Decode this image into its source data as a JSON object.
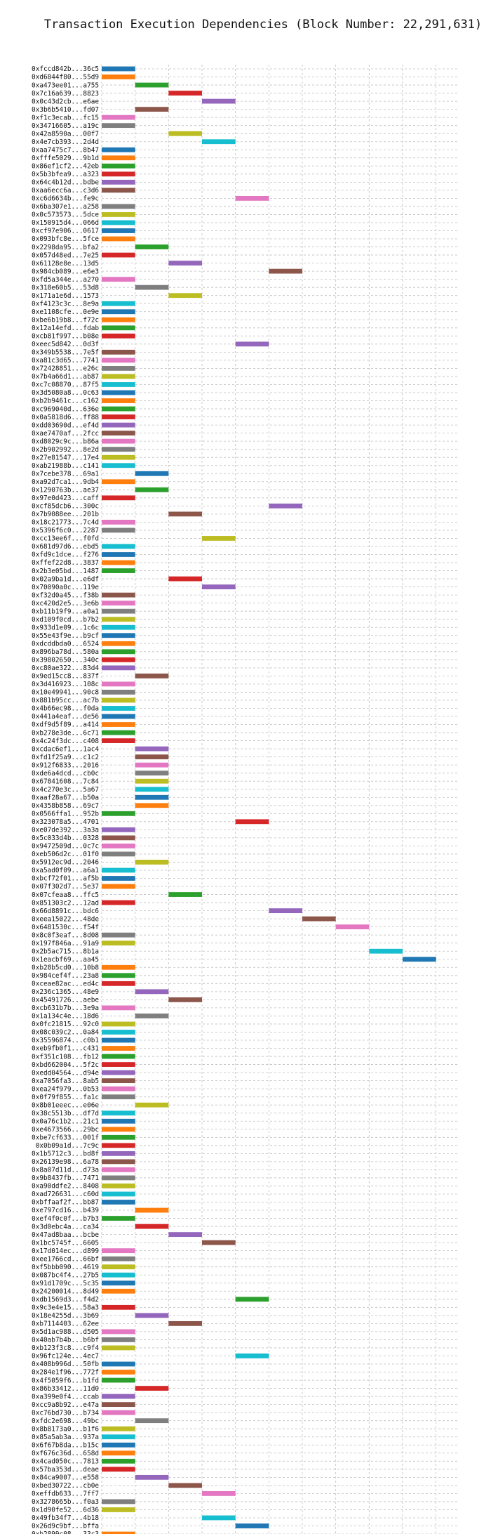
{
  "chart_data": {
    "type": "gantt",
    "title": "Transaction Execution Dependencies (Block Number: 22,291,631)",
    "xlabel": "",
    "ylabel": "",
    "xlim": [
      0,
      10.7
    ],
    "xticks": [
      0,
      2,
      4,
      6,
      8,
      10
    ],
    "grid": true,
    "palette": [
      "#1f77b4",
      "#ff7f0e",
      "#2ca02c",
      "#d62728",
      "#9467bd",
      "#8c564b",
      "#e377c2",
      "#7f7f7f",
      "#bcbd22",
      "#17becf"
    ],
    "bars": [
      {
        "tx": "0xfccd842b...36c5",
        "start": 0,
        "end": 1
      },
      {
        "tx": "0xd6844f80...55d9",
        "start": 0,
        "end": 1
      },
      {
        "tx": "0xa473ee01...a755",
        "start": 1,
        "end": 2
      },
      {
        "tx": "0x7c16a639...8823",
        "start": 2,
        "end": 3
      },
      {
        "tx": "0x0c43d2cb...e6ae",
        "start": 3,
        "end": 4
      },
      {
        "tx": "0x3b6b5410...fd07",
        "start": 1,
        "end": 2
      },
      {
        "tx": "0xf1c3ecab...fc15",
        "start": 0,
        "end": 1
      },
      {
        "tx": "0x34716605...a19c",
        "start": 0,
        "end": 1
      },
      {
        "tx": "0x42a8590a...00f7",
        "start": 2,
        "end": 3
      },
      {
        "tx": "0x4e7cb393...2d4d",
        "start": 3,
        "end": 4
      },
      {
        "tx": "0xaa7475c7...8b47",
        "start": 0,
        "end": 1
      },
      {
        "tx": "0xfffe5029...9b1d",
        "start": 0,
        "end": 1
      },
      {
        "tx": "0x86ef1cf2...42eb",
        "start": 0,
        "end": 1
      },
      {
        "tx": "0x5b3bfea9...a323",
        "start": 0,
        "end": 1
      },
      {
        "tx": "0x64c4b12d...bdbe",
        "start": 0,
        "end": 1
      },
      {
        "tx": "0xaa6ecc6a...c3d6",
        "start": 0,
        "end": 1
      },
      {
        "tx": "0xc6d6634b...fe9c",
        "start": 4,
        "end": 5
      },
      {
        "tx": "0x6ba307e1...a258",
        "start": 0,
        "end": 1
      },
      {
        "tx": "0x0c573573...5dce",
        "start": 0,
        "end": 1
      },
      {
        "tx": "0x150915d4...066d",
        "start": 0,
        "end": 1
      },
      {
        "tx": "0xcf97e906...0617",
        "start": 0,
        "end": 1
      },
      {
        "tx": "0x093bfc8e...5fce",
        "start": 0,
        "end": 1
      },
      {
        "tx": "0x2298da95...bfa2",
        "start": 1,
        "end": 2
      },
      {
        "tx": "0x057d48ed...7e25",
        "start": 0,
        "end": 1
      },
      {
        "tx": "0x61128e8e...13d5",
        "start": 2,
        "end": 3
      },
      {
        "tx": "0x984cb089...e6e3",
        "start": 5,
        "end": 6
      },
      {
        "tx": "0xfd5a344e...a270",
        "start": 0,
        "end": 1
      },
      {
        "tx": "0x318e60b5...53d8",
        "start": 1,
        "end": 2
      },
      {
        "tx": "0x171a1e6d...1573",
        "start": 2,
        "end": 3
      },
      {
        "tx": "0xf4123c3c...8e9a",
        "start": 0,
        "end": 1
      },
      {
        "tx": "0xe1108cfe...0e9e",
        "start": 0,
        "end": 1
      },
      {
        "tx": "0xbe6b19b8...f72c",
        "start": 0,
        "end": 1
      },
      {
        "tx": "0x12a14efd...fdab",
        "start": 0,
        "end": 1
      },
      {
        "tx": "0xcb81f997...b08e",
        "start": 0,
        "end": 1
      },
      {
        "tx": "0xeec5d842...0d3f",
        "start": 4,
        "end": 5
      },
      {
        "tx": "0x349b5538...7e5f",
        "start": 0,
        "end": 1
      },
      {
        "tx": "0xa81c3d65...7741",
        "start": 0,
        "end": 1
      },
      {
        "tx": "0x72428851...e26c",
        "start": 0,
        "end": 1
      },
      {
        "tx": "0x7b4a66d1...ab87",
        "start": 0,
        "end": 1
      },
      {
        "tx": "0xc7c08870...87f5",
        "start": 0,
        "end": 1
      },
      {
        "tx": "0x3d5080a8...0c63",
        "start": 0,
        "end": 1
      },
      {
        "tx": "0xb2b9461c...c162",
        "start": 0,
        "end": 1
      },
      {
        "tx": "0xc969040d...636e",
        "start": 0,
        "end": 1
      },
      {
        "tx": "0x0a5818d6...ff88",
        "start": 0,
        "end": 1
      },
      {
        "tx": "0xdd03690d...ef4d",
        "start": 0,
        "end": 1
      },
      {
        "tx": "0xae7470af...2fcc",
        "start": 0,
        "end": 1
      },
      {
        "tx": "0xd8029c9c...b86a",
        "start": 0,
        "end": 1
      },
      {
        "tx": "0x2b902992...8e2d",
        "start": 0,
        "end": 1
      },
      {
        "tx": "0x27e81547...17e4",
        "start": 0,
        "end": 1
      },
      {
        "tx": "0xab21988b...c141",
        "start": 0,
        "end": 1
      },
      {
        "tx": "0x7cebe378...69a1",
        "start": 1,
        "end": 2
      },
      {
        "tx": "0xa92d7ca1...9db4",
        "start": 0,
        "end": 1
      },
      {
        "tx": "0x1290763b...ae37",
        "start": 1,
        "end": 2
      },
      {
        "tx": "0x97e0d423...caff",
        "start": 0,
        "end": 1
      },
      {
        "tx": "0xcf85dcb6...300c",
        "start": 5,
        "end": 6
      },
      {
        "tx": "0x7b9088ee...201b",
        "start": 2,
        "end": 3
      },
      {
        "tx": "0x18c21773...7c4d",
        "start": 0,
        "end": 1
      },
      {
        "tx": "0x5396f6c0...2287",
        "start": 0,
        "end": 1
      },
      {
        "tx": "0xcc13ee6f...f0fd",
        "start": 3,
        "end": 4
      },
      {
        "tx": "0x681d97d6...ebd5",
        "start": 0,
        "end": 1
      },
      {
        "tx": "0xfd9c1dce...f276",
        "start": 0,
        "end": 1
      },
      {
        "tx": "0xffef22d8...3837",
        "start": 0,
        "end": 1
      },
      {
        "tx": "0x2b3e05bd...1487",
        "start": 0,
        "end": 1
      },
      {
        "tx": "0x02a9ba1d...e6df",
        "start": 2,
        "end": 3
      },
      {
        "tx": "0x70090a0c...119e",
        "start": 3,
        "end": 4
      },
      {
        "tx": "0xf32d0a45...f38b",
        "start": 0,
        "end": 1
      },
      {
        "tx": "0xc420d2e5...3e6b",
        "start": 0,
        "end": 1
      },
      {
        "tx": "0xb11b19f9...a0a1",
        "start": 0,
        "end": 1
      },
      {
        "tx": "0xd109f0cd...b7b2",
        "start": 0,
        "end": 1
      },
      {
        "tx": "0x933d1e09...1c6c",
        "start": 0,
        "end": 1
      },
      {
        "tx": "0x55e43f9e...b9cf",
        "start": 0,
        "end": 1
      },
      {
        "tx": "0xdcddbda0...6524",
        "start": 0,
        "end": 1
      },
      {
        "tx": "0x896ba78d...580a",
        "start": 0,
        "end": 1
      },
      {
        "tx": "0x39802650...340c",
        "start": 0,
        "end": 1
      },
      {
        "tx": "0xc80ae322...83d4",
        "start": 0,
        "end": 1
      },
      {
        "tx": "0x9ed15cc8...837f",
        "start": 1,
        "end": 2
      },
      {
        "tx": "0x3d416923...108c",
        "start": 0,
        "end": 1
      },
      {
        "tx": "0x10e49941...90c8",
        "start": 0,
        "end": 1
      },
      {
        "tx": "0x881b95cc...ac7b",
        "start": 0,
        "end": 1
      },
      {
        "tx": "0x4b66ec98...f0da",
        "start": 0,
        "end": 1
      },
      {
        "tx": "0x441a4eaf...de56",
        "start": 0,
        "end": 1
      },
      {
        "tx": "0xdf9d5f89...a414",
        "start": 0,
        "end": 1
      },
      {
        "tx": "0xb278e3de...6c71",
        "start": 0,
        "end": 1
      },
      {
        "tx": "0x4c24f3dc...c408",
        "start": 0,
        "end": 1
      },
      {
        "tx": "0xcdac6ef1...1ac4",
        "start": 1,
        "end": 2
      },
      {
        "tx": "0xfd1f25a9...c1c2",
        "start": 1,
        "end": 2
      },
      {
        "tx": "0x912f6833...2016",
        "start": 1,
        "end": 2
      },
      {
        "tx": "0xde6a4dcd...cb0c",
        "start": 1,
        "end": 2
      },
      {
        "tx": "0x67841608...7c84",
        "start": 1,
        "end": 2
      },
      {
        "tx": "0x4c270e3c...5a67",
        "start": 1,
        "end": 2
      },
      {
        "tx": "0xaaf28a67...b50a",
        "start": 1,
        "end": 2
      },
      {
        "tx": "0x4358b858...69c7",
        "start": 1,
        "end": 2
      },
      {
        "tx": "0x0566ffa1...952b",
        "start": 0,
        "end": 1
      },
      {
        "tx": "0x323078a5...4701",
        "start": 4,
        "end": 5
      },
      {
        "tx": "0xe07de392...3a3a",
        "start": 0,
        "end": 1
      },
      {
        "tx": "0x5c033d4b...0328",
        "start": 0,
        "end": 1
      },
      {
        "tx": "0x9472509d...0c7c",
        "start": 0,
        "end": 1
      },
      {
        "tx": "0xeb506d2c...01f0",
        "start": 0,
        "end": 1
      },
      {
        "tx": "0x5912ec9d...2046",
        "start": 1,
        "end": 2
      },
      {
        "tx": "0xa5ad0f09...a6a1",
        "start": 0,
        "end": 1
      },
      {
        "tx": "0xbcf72f01...af5b",
        "start": 0,
        "end": 1
      },
      {
        "tx": "0x07f302d7...5e37",
        "start": 0,
        "end": 1
      },
      {
        "tx": "0x07cfeaa8...ffc5",
        "start": 2,
        "end": 3
      },
      {
        "tx": "0x851303c2...12ad",
        "start": 0,
        "end": 1
      },
      {
        "tx": "0x66d8891c...bdc6",
        "start": 5,
        "end": 6
      },
      {
        "tx": "0xeea15022...48de",
        "start": 6,
        "end": 7
      },
      {
        "tx": "0x6481530c...f54f",
        "start": 7,
        "end": 8
      },
      {
        "tx": "0x8c0f3eaf...8d08",
        "start": 0,
        "end": 1
      },
      {
        "tx": "0x197f846a...91a9",
        "start": 0,
        "end": 1
      },
      {
        "tx": "0x2b5ac715...8b1a",
        "start": 8,
        "end": 9
      },
      {
        "tx": "0x1eacbf69...aa45",
        "start": 9,
        "end": 10
      },
      {
        "tx": "0xb28b5cd0...10b8",
        "start": 0,
        "end": 1
      },
      {
        "tx": "0x984cef4f...23a8",
        "start": 0,
        "end": 1
      },
      {
        "tx": "0xceae82ac...ed4c",
        "start": 0,
        "end": 1
      },
      {
        "tx": "0x236c1365...48e9",
        "start": 1,
        "end": 2
      },
      {
        "tx": "0x45491726...aebe",
        "start": 2,
        "end": 3
      },
      {
        "tx": "0xcb631b7b...3e9a",
        "start": 0,
        "end": 1
      },
      {
        "tx": "0x1a134c4e...18d6",
        "start": 1,
        "end": 2
      },
      {
        "tx": "0x0fc21815...92c0",
        "start": 0,
        "end": 1
      },
      {
        "tx": "0x08c039c2...0a84",
        "start": 0,
        "end": 1
      },
      {
        "tx": "0x35596874...c0b1",
        "start": 0,
        "end": 1
      },
      {
        "tx": "0xeb9fb0f1...c431",
        "start": 0,
        "end": 1
      },
      {
        "tx": "0xf351c108...fb12",
        "start": 0,
        "end": 1
      },
      {
        "tx": "0xbd662004...5f2c",
        "start": 0,
        "end": 1
      },
      {
        "tx": "0xedd04564...d94e",
        "start": 0,
        "end": 1
      },
      {
        "tx": "0xa7056fa3...8ab5",
        "start": 0,
        "end": 1
      },
      {
        "tx": "0xea24f979...0b53",
        "start": 0,
        "end": 1
      },
      {
        "tx": "0x0f79f855...fa1c",
        "start": 0,
        "end": 1
      },
      {
        "tx": "0x8b01eeec...e06e",
        "start": 1,
        "end": 2
      },
      {
        "tx": "0x38c5513b...df7d",
        "start": 0,
        "end": 1
      },
      {
        "tx": "0x0a76c1b2...21c1",
        "start": 0,
        "end": 1
      },
      {
        "tx": "0xe4673566...29bc",
        "start": 0,
        "end": 1
      },
      {
        "tx": "0xbe7cf633...001f",
        "start": 0,
        "end": 1
      },
      {
        "tx": "0x0b09a1d...7c9c",
        "start": 0,
        "end": 1
      },
      {
        "tx": "0x1b5712c3...bd8f",
        "start": 0,
        "end": 1
      },
      {
        "tx": "0x26139e98...6a78",
        "start": 0,
        "end": 1
      },
      {
        "tx": "0x8a07d11d...d73a",
        "start": 0,
        "end": 1
      },
      {
        "tx": "0x9b8437fb...7471",
        "start": 0,
        "end": 1
      },
      {
        "tx": "0xa90ddfe2...8408",
        "start": 0,
        "end": 1
      },
      {
        "tx": "0xad726631...c60d",
        "start": 0,
        "end": 1
      },
      {
        "tx": "0xbffaaf2f...bb87",
        "start": 0,
        "end": 1
      },
      {
        "tx": "0xe797cd16...b439",
        "start": 1,
        "end": 2
      },
      {
        "tx": "0xef4f0c0f...b7b3",
        "start": 0,
        "end": 1
      },
      {
        "tx": "0x3d0ebc4a...ca34",
        "start": 1,
        "end": 2
      },
      {
        "tx": "0x47ad8baa...bcbe",
        "start": 2,
        "end": 3
      },
      {
        "tx": "0x1bc5745f...6605",
        "start": 3,
        "end": 4
      },
      {
        "tx": "0x17d014ec...d899",
        "start": 0,
        "end": 1
      },
      {
        "tx": "0xee1766cd...66bf",
        "start": 0,
        "end": 1
      },
      {
        "tx": "0xf5bbb090...4619",
        "start": 0,
        "end": 1
      },
      {
        "tx": "0x087bc4f4...27b5",
        "start": 0,
        "end": 1
      },
      {
        "tx": "0x91d1709c...5c35",
        "start": 0,
        "end": 1
      },
      {
        "tx": "0x24200014...8d49",
        "start": 0,
        "end": 1
      },
      {
        "tx": "0xdb1569d3...f4d2",
        "start": 4,
        "end": 5
      },
      {
        "tx": "0x9c3e4e15...58a3",
        "start": 0,
        "end": 1
      },
      {
        "tx": "0x18e4255d...3b69",
        "start": 1,
        "end": 2
      },
      {
        "tx": "0xb7114403...62ee",
        "start": 2,
        "end": 3
      },
      {
        "tx": "0x5d1ac988...d505",
        "start": 0,
        "end": 1
      },
      {
        "tx": "0x40ab7b4b...b6bf",
        "start": 0,
        "end": 1
      },
      {
        "tx": "0xb123f3c8...c9f4",
        "start": 0,
        "end": 1
      },
      {
        "tx": "0x96fc124e...4ec7",
        "start": 4,
        "end": 5
      },
      {
        "tx": "0x408b996d...50fb",
        "start": 0,
        "end": 1
      },
      {
        "tx": "0x284e1f96...772f",
        "start": 0,
        "end": 1
      },
      {
        "tx": "0x4f5059f6...b1fd",
        "start": 0,
        "end": 1
      },
      {
        "tx": "0x86b33412...11d0",
        "start": 1,
        "end": 2
      },
      {
        "tx": "0xa399e0f4...ccab",
        "start": 0,
        "end": 1
      },
      {
        "tx": "0xcc9a8b92...e47a",
        "start": 0,
        "end": 1
      },
      {
        "tx": "0xc76bd730...b734",
        "start": 0,
        "end": 1
      },
      {
        "tx": "0xfdc2e698...49bc",
        "start": 1,
        "end": 2
      },
      {
        "tx": "0x8b8173a0...b1f6",
        "start": 0,
        "end": 1
      },
      {
        "tx": "0x85a5ab3a...937a",
        "start": 0,
        "end": 1
      },
      {
        "tx": "0x6f67b8da...b15c",
        "start": 0,
        "end": 1
      },
      {
        "tx": "0xf676c36d...658d",
        "start": 0,
        "end": 1
      },
      {
        "tx": "0x4cad050c...7813",
        "start": 0,
        "end": 1
      },
      {
        "tx": "0x57ba353d...deae",
        "start": 0,
        "end": 1
      },
      {
        "tx": "0x84ca9007...e558",
        "start": 1,
        "end": 2
      },
      {
        "tx": "0xbed30722...cb0e",
        "start": 2,
        "end": 3
      },
      {
        "tx": "0xeffdb633...7ff7",
        "start": 3,
        "end": 4
      },
      {
        "tx": "0x3278665b...f0a3",
        "start": 0,
        "end": 1
      },
      {
        "tx": "0x1d90fe52...6d36",
        "start": 0,
        "end": 1
      },
      {
        "tx": "0x49fb34f7...4b18",
        "start": 3,
        "end": 4
      },
      {
        "tx": "0x26d9c9bf...bffa",
        "start": 4,
        "end": 5
      },
      {
        "tx": "0xb2899c08...33c3",
        "start": 0,
        "end": 1
      }
    ]
  }
}
